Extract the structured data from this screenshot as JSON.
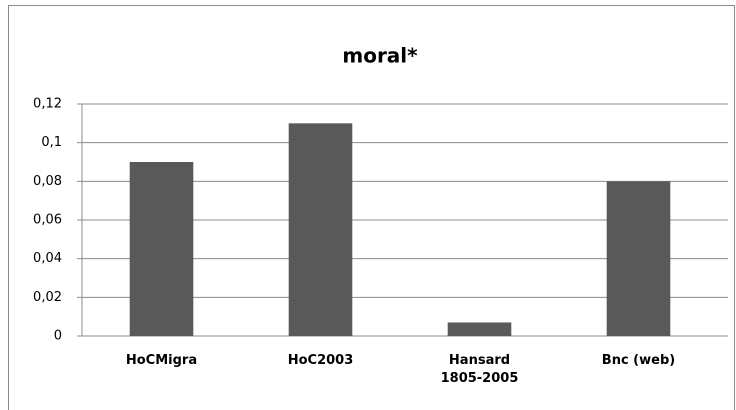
{
  "chart_data": {
    "type": "bar",
    "title": "moral*",
    "categories": [
      "HoCMigra",
      "HoC2003",
      "Hansard 1805-2005",
      "Bnc (web)"
    ],
    "values": [
      0.09,
      0.11,
      0.007,
      0.08
    ],
    "color": "#595959",
    "ylim": [
      0,
      0.12
    ],
    "yticks": [
      0,
      {
        "value": 0.02,
        "label": "0,02"
      },
      {
        "value": 0.04,
        "label": "0,04"
      },
      {
        "value": 0.06,
        "label": "0,06"
      },
      {
        "value": 0.08,
        "label": "0,08"
      },
      {
        "value": 0.1,
        "label": "0,1"
      },
      {
        "value": 0.12,
        "label": "0,12"
      }
    ],
    "grid": true
  }
}
